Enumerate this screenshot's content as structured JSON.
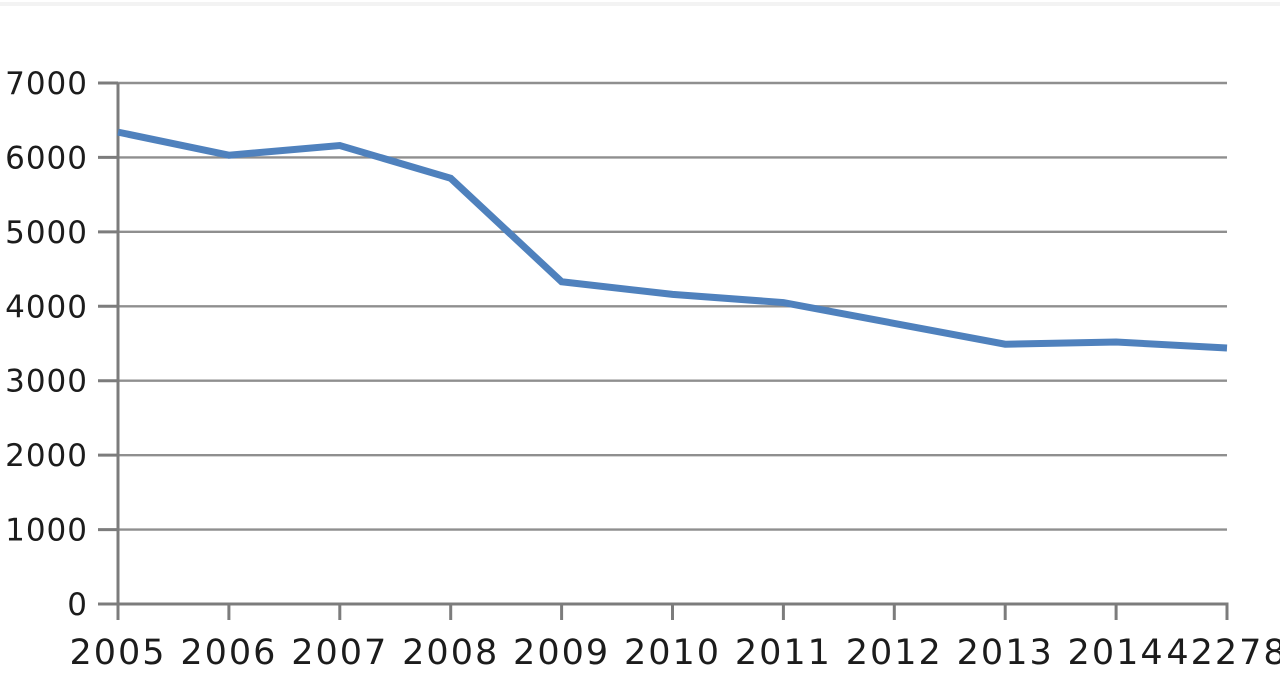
{
  "chart_data": {
    "type": "line",
    "title": "",
    "xlabel": "",
    "ylabel": "",
    "categories": [
      "2005",
      "2006",
      "2007",
      "2008",
      "2009",
      "2010",
      "2011",
      "2012",
      "2013",
      "2014",
      "42278"
    ],
    "series": [
      {
        "name": "series-1",
        "values": [
          6340,
          6030,
          6160,
          5720,
          4330,
          4160,
          4050,
          3770,
          3490,
          3520,
          3440
        ]
      }
    ],
    "ylim": [
      0,
      7000
    ],
    "yticks": [
      0,
      1000,
      2000,
      3000,
      4000,
      5000,
      6000,
      7000
    ],
    "ytick_labels": [
      "0",
      "1000",
      "2000",
      "3000",
      "4000",
      "5000",
      "6000",
      "7000"
    ],
    "grid": true,
    "gridlines": "horizontal",
    "legend": "none",
    "markers": "none",
    "colors": {
      "line": "#4f81bd",
      "gridline": "#8f8f8f",
      "axis": "#7c7c7c",
      "label": "#1c1c1c",
      "background": "#ffffff"
    }
  }
}
